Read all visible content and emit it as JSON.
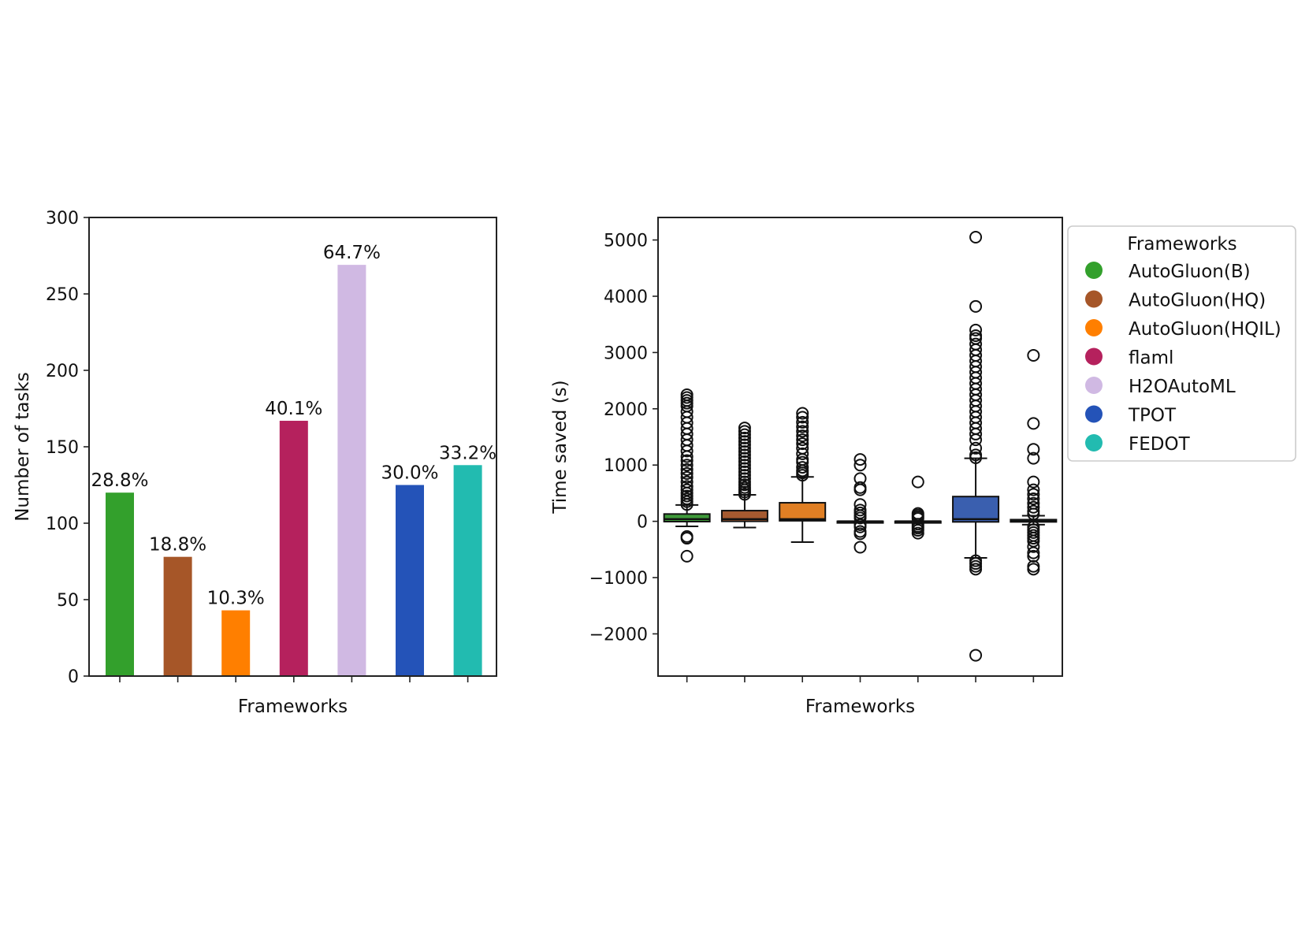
{
  "chart_data": [
    {
      "type": "bar",
      "categories": [
        "AutoGluon(B)",
        "AutoGluon(HQ)",
        "AutoGluon(HQIL)",
        "flaml",
        "H2OAutoML",
        "TPOT",
        "FEDOT"
      ],
      "values": [
        120,
        78,
        43,
        167,
        269,
        125,
        138
      ],
      "bar_labels": [
        "28.8%",
        "18.8%",
        "10.3%",
        "40.1%",
        "64.7%",
        "30.0%",
        "33.2%"
      ],
      "colors": [
        "#33a02c",
        "#a65628",
        "#ff7f00",
        "#b5215d",
        "#d0b9e3",
        "#2453b8",
        "#22bbb0"
      ],
      "xlabel": "Frameworks",
      "ylabel": "Number of tasks",
      "ylim": [
        0,
        300
      ],
      "yticks": [
        "0",
        "50",
        "100",
        "150",
        "200",
        "250",
        "300"
      ]
    },
    {
      "type": "box",
      "categories": [
        "AutoGluon(B)",
        "AutoGluon(HQ)",
        "AutoGluon(HQIL)",
        "flaml",
        "H2OAutoML",
        "TPOT",
        "FEDOT"
      ],
      "colors": [
        "#3f9a3a",
        "#a55a30",
        "#e07f24",
        "#b5215d",
        "#d0b9e3",
        "#3a5faf",
        "#22bbb0"
      ],
      "boxes": [
        {
          "whislo": -90,
          "q1": -5,
          "med": 40,
          "q3": 130,
          "whishi": 290,
          "fliers": [
            300,
            350,
            400,
            450,
            500,
            560,
            620,
            700,
            780,
            850,
            920,
            1000,
            1080,
            1150,
            1250,
            1350,
            1450,
            1550,
            1650,
            1750,
            1850,
            1950,
            2050,
            2100,
            2150,
            2200,
            2250,
            -270,
            -300,
            -620
          ]
        },
        {
          "whislo": -110,
          "q1": 0,
          "med": 40,
          "q3": 190,
          "whishi": 470,
          "fliers": [
            480,
            520,
            560,
            600,
            650,
            700,
            760,
            820,
            880,
            940,
            1000,
            1060,
            1120,
            1180,
            1240,
            1300,
            1360,
            1420,
            1480,
            1540,
            1600,
            1660
          ]
        },
        {
          "whislo": -370,
          "q1": 10,
          "med": 40,
          "q3": 330,
          "whishi": 790,
          "fliers": [
            820,
            860,
            900,
            960,
            1050,
            1100,
            1200,
            1300,
            1380,
            1450,
            1520,
            1600,
            1680,
            1760,
            1850,
            1920
          ]
        },
        {
          "whislo": 0,
          "q1": 0,
          "med": 0,
          "q3": 0,
          "whishi": 0,
          "fliers": [
            1100,
            1000,
            760,
            600,
            560,
            300,
            200,
            150,
            100,
            60,
            -60,
            -100,
            -180,
            -220,
            -460
          ]
        },
        {
          "whislo": 0,
          "q1": 0,
          "med": 0,
          "q3": 0,
          "whishi": 0,
          "fliers": [
            700,
            140,
            110,
            80,
            50,
            -50,
            -90,
            -120,
            -160,
            -210
          ]
        },
        {
          "whislo": -650,
          "q1": -10,
          "med": 40,
          "q3": 440,
          "whishi": 1120,
          "fliers": [
            1130,
            1180,
            1300,
            1450,
            1550,
            1650,
            1750,
            1850,
            1950,
            2050,
            2150,
            2250,
            2350,
            2450,
            2550,
            2650,
            2750,
            2850,
            2950,
            3050,
            3150,
            3250,
            3300,
            3400,
            3820,
            5050,
            -700,
            -750,
            -800,
            -850,
            -2380
          ]
        },
        {
          "whislo": -60,
          "q1": -10,
          "med": 0,
          "q3": 30,
          "whishi": 100,
          "fliers": [
            2950,
            1740,
            1280,
            1120,
            700,
            560,
            480,
            400,
            320,
            250,
            180,
            130,
            -100,
            -150,
            -200,
            -250,
            -300,
            -350,
            -450,
            -560,
            -620,
            -800,
            -850
          ]
        }
      ],
      "xlabel": "Frameworks",
      "ylabel": "Time saved (s)",
      "ylim": [
        -2750,
        5400
      ],
      "yticks": [
        -2000,
        -1000,
        0,
        1000,
        2000,
        3000,
        4000,
        5000
      ],
      "ytick_labels": [
        "−2000",
        "−1000",
        "0",
        "1000",
        "2000",
        "3000",
        "4000",
        "5000"
      ],
      "legend": {
        "title": "Frameworks",
        "position": "right-outside",
        "entries": [
          "AutoGluon(B)",
          "AutoGluon(HQ)",
          "AutoGluon(HQIL)",
          "flaml",
          "H2OAutoML",
          "TPOT",
          "FEDOT"
        ],
        "colors": [
          "#33a02c",
          "#a65628",
          "#ff7f00",
          "#b5215d",
          "#d0b9e3",
          "#2453b8",
          "#22bbb0"
        ]
      }
    }
  ]
}
